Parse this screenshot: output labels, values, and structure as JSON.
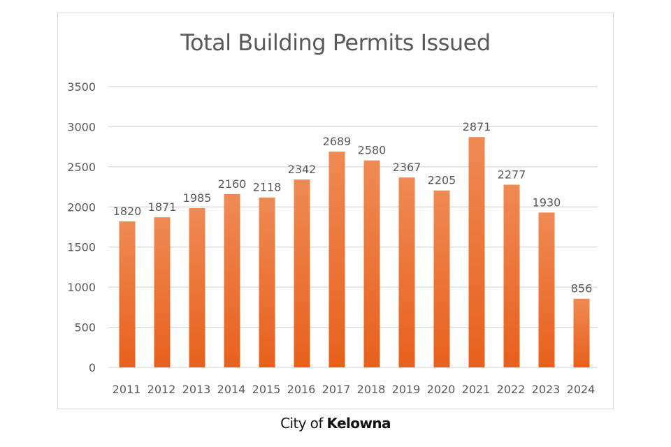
{
  "chart_data": {
    "type": "bar",
    "title": "Total Building Permits Issued",
    "xlabel": "",
    "ylabel": "",
    "categories": [
      "2011",
      "2012",
      "2013",
      "2014",
      "2015",
      "2016",
      "2017",
      "2018",
      "2019",
      "2020",
      "2021",
      "2022",
      "2023",
      "2024"
    ],
    "values": [
      1820,
      1871,
      1985,
      2160,
      2118,
      2342,
      2689,
      2580,
      2367,
      2205,
      2871,
      2277,
      1930,
      856
    ],
    "data_labels": [
      "1820",
      "1871",
      "1985",
      "2160",
      "2118",
      "2342",
      "2689",
      "2580",
      "2367",
      "2205",
      "2871",
      "2277",
      "1930",
      "856"
    ],
    "ylim": [
      0,
      3500
    ],
    "yticks": [
      "0",
      "500",
      "1000",
      "1500",
      "2000",
      "2500",
      "3000",
      "3500"
    ],
    "grid": true,
    "legend": "none",
    "colors": {
      "bar_top": "#ef8a54",
      "bar_bottom": "#e8601c",
      "grid": "#d9d9d9",
      "text": "#595959"
    }
  },
  "footer": {
    "prefix": "City of ",
    "brand": "Kelowna"
  }
}
